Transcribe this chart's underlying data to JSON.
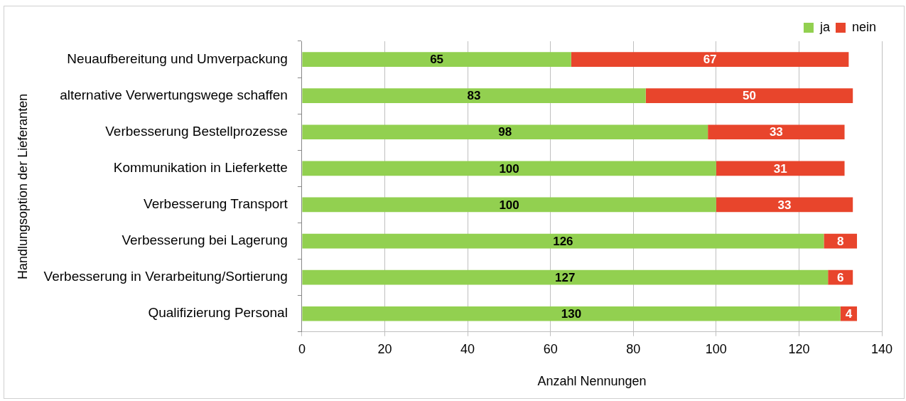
{
  "chart_data": {
    "type": "bar",
    "orientation": "horizontal",
    "stacked": true,
    "categories": [
      "Neuaufbereitung und Umverpackung",
      "alternative Verwertungswege schaffen",
      "Verbesserung Bestellprozesse",
      "Kommunikation in Lieferkette",
      "Verbesserung Transport",
      "Verbesserung bei Lagerung",
      "Verbesserung in Verarbeitung/Sortierung",
      "Qualifizierung Personal"
    ],
    "series": [
      {
        "name": "ja",
        "color": "#92d050",
        "values": [
          65,
          83,
          98,
          100,
          100,
          126,
          127,
          130
        ]
      },
      {
        "name": "nein",
        "color": "#e8452c",
        "values": [
          67,
          50,
          33,
          31,
          33,
          8,
          6,
          4
        ]
      }
    ],
    "xlim": [
      0,
      140
    ],
    "xticks": [
      0,
      20,
      40,
      60,
      80,
      100,
      120,
      140
    ],
    "xlabel": "Anzahl Nennungen",
    "ylabel": "Handlungsoption der Lieferanten",
    "grid": "x",
    "legend": "top right",
    "data_labels": true
  }
}
